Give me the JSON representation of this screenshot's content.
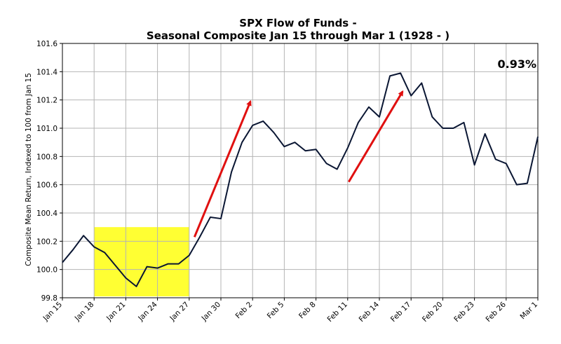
{
  "chart_data": {
    "type": "line",
    "title_line1": "SPX Flow of Funds -",
    "title_line2": "Seasonal Composite Jan 15 through Mar 1 (1928 - )",
    "xlabel": "",
    "ylabel": "Composite Mean Return, Indexed to 100 from Jan 15",
    "ylim": [
      99.8,
      101.6
    ],
    "yticks": [
      "99.8",
      "100.0",
      "100.2",
      "100.4",
      "100.6",
      "100.8",
      "101.0",
      "101.2",
      "101.4",
      "101.6"
    ],
    "xlim": [
      0,
      45
    ],
    "xticks": [
      {
        "label": "Jan 15",
        "day": 0
      },
      {
        "label": "Jan 18",
        "day": 3
      },
      {
        "label": "Jan 21",
        "day": 6
      },
      {
        "label": "Jan 24",
        "day": 9
      },
      {
        "label": "Jan 27",
        "day": 12
      },
      {
        "label": "Jan 30",
        "day": 15
      },
      {
        "label": "Feb 2",
        "day": 18
      },
      {
        "label": "Feb 5",
        "day": 21
      },
      {
        "label": "Feb 8",
        "day": 24
      },
      {
        "label": "Feb 11",
        "day": 27
      },
      {
        "label": "Feb 14",
        "day": 30
      },
      {
        "label": "Feb 17",
        "day": 33
      },
      {
        "label": "Feb 20",
        "day": 36
      },
      {
        "label": "Feb 23",
        "day": 39
      },
      {
        "label": "Feb 26",
        "day": 42
      },
      {
        "label": "Mar 1",
        "day": 45
      }
    ],
    "grid": true,
    "series": [
      {
        "name": "Composite",
        "color": "#0a1633",
        "x": [
          0,
          1,
          2,
          3,
          4,
          5,
          6,
          7,
          8,
          9,
          10,
          11,
          12,
          13,
          14,
          15,
          16,
          17,
          18,
          19,
          20,
          21,
          22,
          23,
          24,
          25,
          26,
          27,
          28,
          29,
          30,
          31,
          32,
          33,
          34,
          35,
          36,
          37,
          38,
          39,
          40,
          41,
          42,
          43,
          44,
          45
        ],
        "values": [
          100.05,
          100.14,
          100.24,
          100.16,
          100.12,
          100.03,
          99.94,
          99.88,
          100.02,
          100.01,
          100.04,
          100.04,
          100.1,
          100.23,
          100.37,
          100.36,
          100.69,
          100.9,
          101.02,
          101.05,
          100.97,
          100.87,
          100.9,
          100.84,
          100.85,
          100.75,
          100.71,
          100.86,
          101.04,
          101.15,
          101.08,
          101.37,
          101.39,
          101.23,
          101.32,
          101.08,
          101.0,
          101.0,
          101.04,
          100.74,
          100.96,
          100.78,
          100.75,
          100.6,
          100.61,
          100.94
        ]
      }
    ],
    "highlight_region": {
      "x_start": 3,
      "x_end": 12,
      "y_start": 99.81,
      "y_end": 100.3,
      "color": "#ffff33"
    },
    "arrows": [
      {
        "x1": 12.5,
        "y1": 100.23,
        "x2": 17.8,
        "y2": 101.19,
        "color": "#e01010"
      },
      {
        "x1": 27.1,
        "y1": 100.62,
        "x2": 32.2,
        "y2": 101.26,
        "color": "#e01010"
      }
    ],
    "annotation": {
      "text": "0.93%",
      "location": "top-right"
    }
  }
}
